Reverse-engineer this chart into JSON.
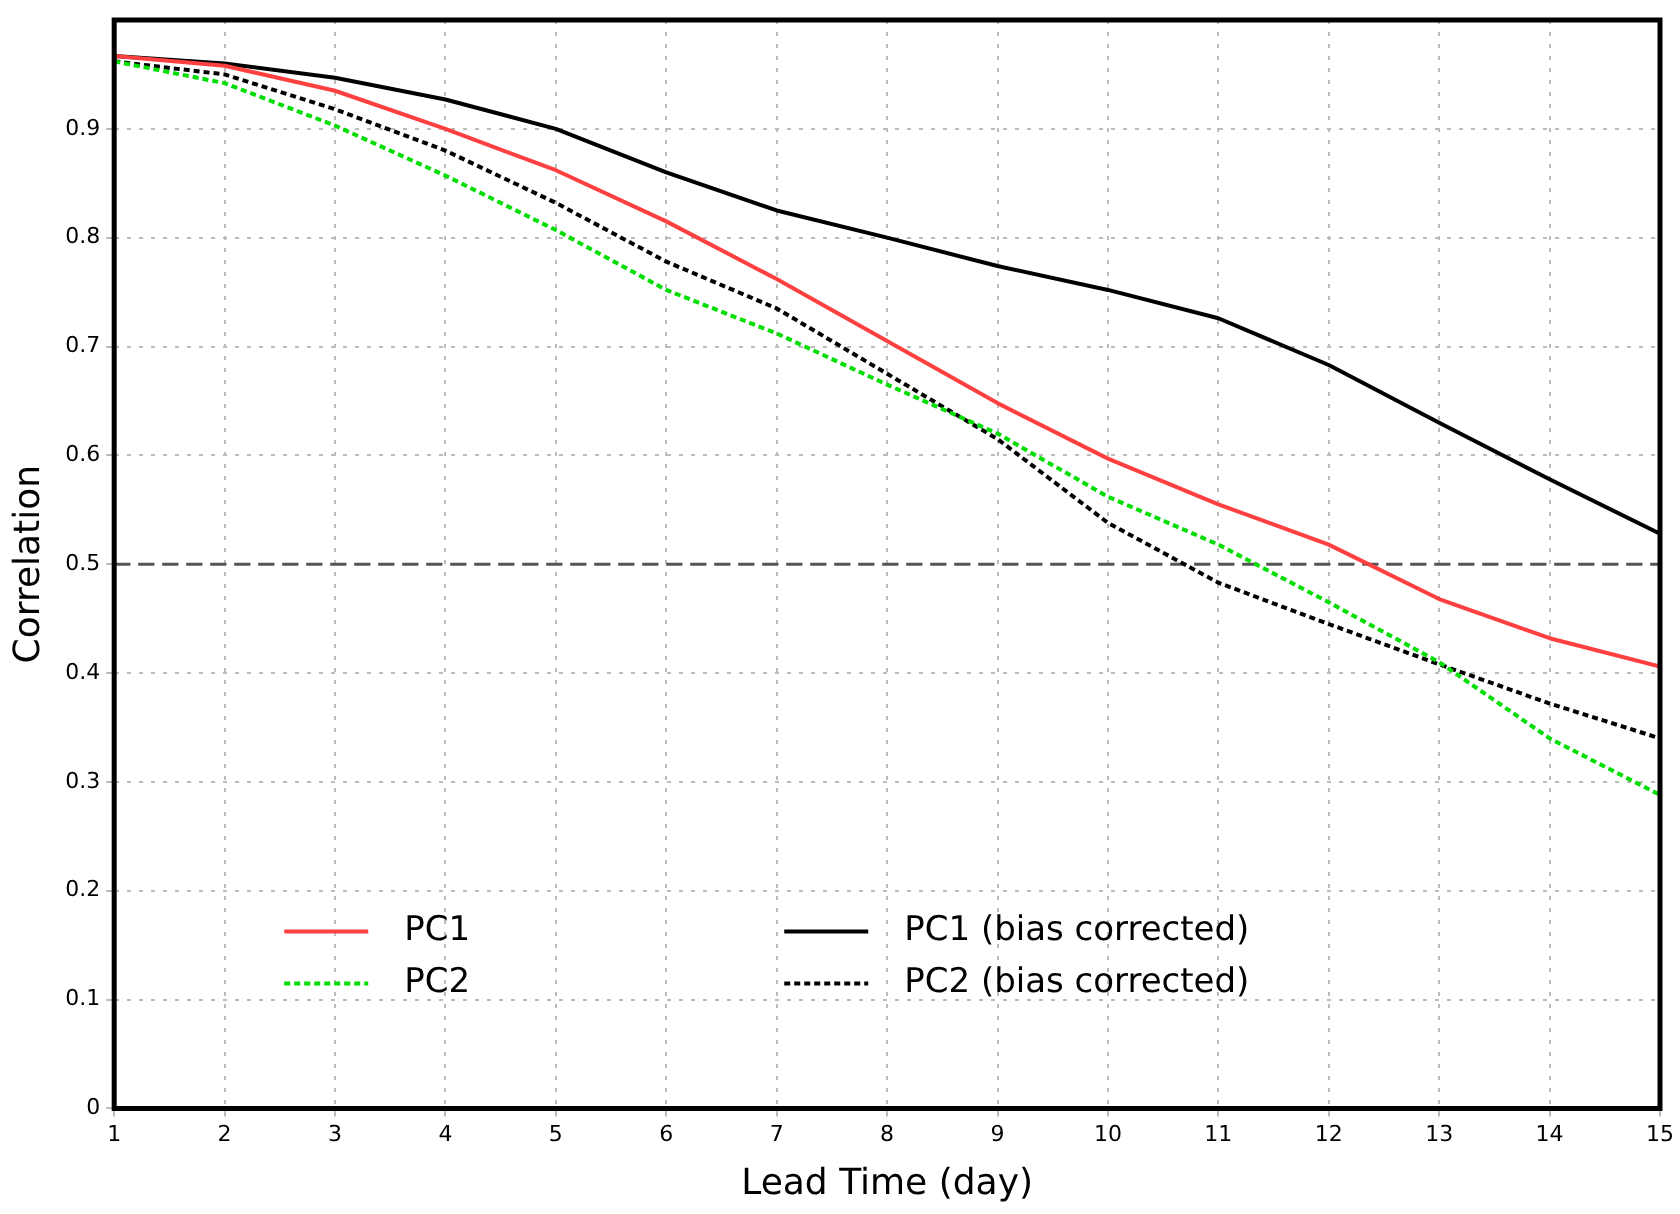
{
  "chart_data": {
    "type": "line",
    "xlabel": "Lead Time (day)",
    "ylabel": "Correlation",
    "x": [
      1,
      2,
      3,
      4,
      5,
      6,
      7,
      8,
      9,
      10,
      11,
      12,
      13,
      14,
      15
    ],
    "xlim": [
      1,
      15
    ],
    "xticks": [
      1,
      2,
      3,
      4,
      5,
      6,
      7,
      8,
      9,
      10,
      11,
      12,
      13,
      14,
      15
    ],
    "ylim": [
      0,
      1
    ],
    "yticks": [
      0,
      0.1,
      0.2,
      0.3,
      0.4,
      0.5,
      0.6,
      0.7,
      0.8,
      0.9
    ],
    "grid": true,
    "legend": "bottom left",
    "marker": "none",
    "ref_lines": [
      {
        "axis": "y",
        "value": 0.5,
        "color": "#555555",
        "line_style": "dashed"
      }
    ],
    "series": [
      {
        "name": "PC1",
        "color": "#ff4040",
        "line_style": "solid",
        "values": [
          0.967,
          0.958,
          0.935,
          0.9,
          0.862,
          0.815,
          0.762,
          0.705,
          0.648,
          0.597,
          0.555,
          0.518,
          0.468,
          0.432,
          0.406
        ]
      },
      {
        "name": "PC2",
        "color": "#00dd00",
        "line_style": "dotted",
        "values": [
          0.962,
          0.942,
          0.903,
          0.857,
          0.807,
          0.752,
          0.712,
          0.665,
          0.62,
          0.562,
          0.518,
          0.465,
          0.41,
          0.34,
          0.288
        ]
      },
      {
        "name": "PC1 (bias corrected)",
        "color": "#000000",
        "line_style": "solid",
        "values": [
          0.967,
          0.96,
          0.947,
          0.927,
          0.9,
          0.86,
          0.825,
          0.8,
          0.774,
          0.752,
          0.726,
          0.683,
          0.63,
          0.578,
          0.528
        ]
      },
      {
        "name": "PC2 (bias corrected)",
        "color": "#000000",
        "line_style": "dotted",
        "values": [
          0.962,
          0.95,
          0.918,
          0.88,
          0.832,
          0.778,
          0.735,
          0.675,
          0.615,
          0.538,
          0.483,
          0.445,
          0.408,
          0.372,
          0.34
        ]
      }
    ]
  }
}
